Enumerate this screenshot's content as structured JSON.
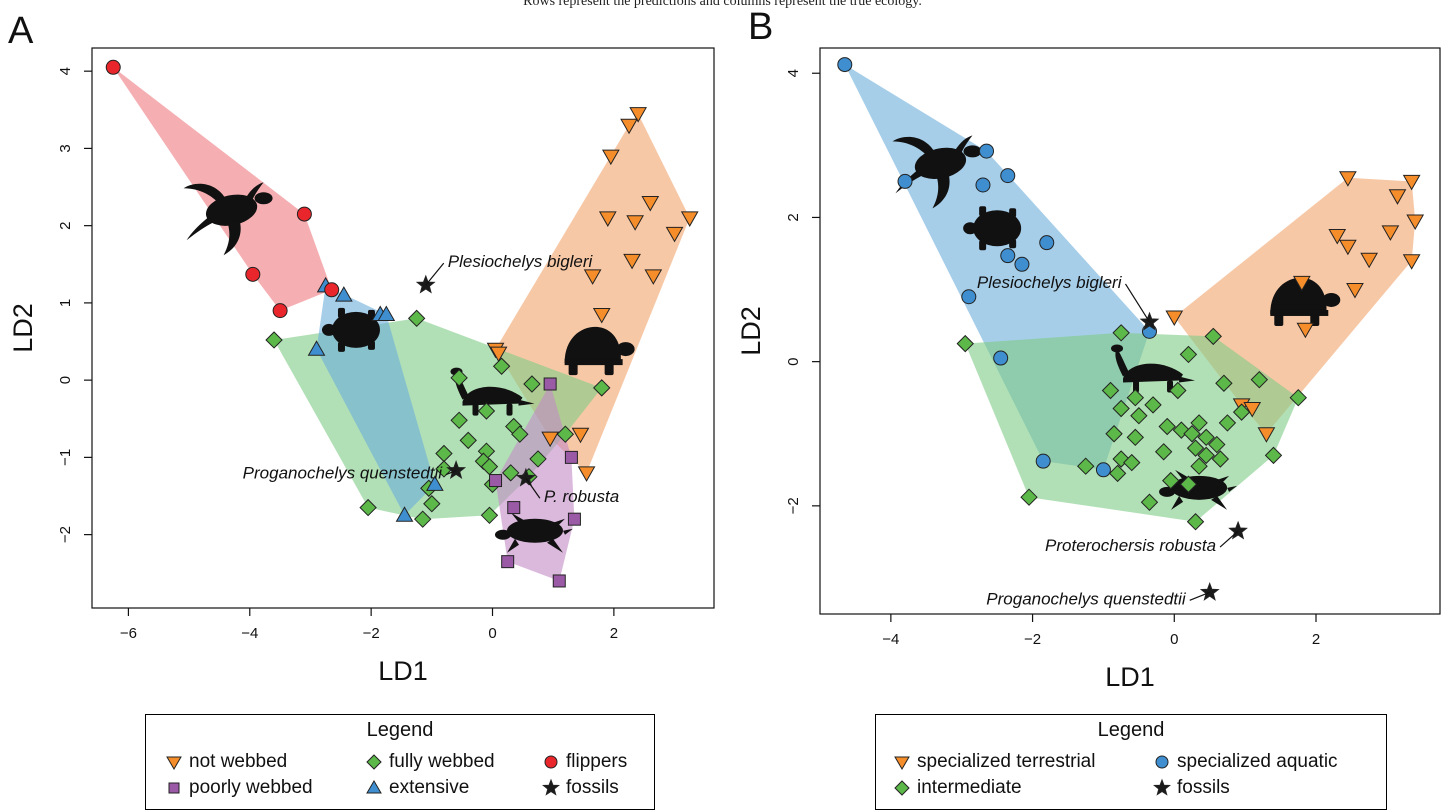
{
  "caption": "Rows represent the predictions and columns represent the true ecology.",
  "colors": {
    "orange": "#f58d2a",
    "green": "#5cb848",
    "purple": "#9b5aa6",
    "blue": "#3f8fd0",
    "red": "#e8262b",
    "black": "#1a1a1a",
    "hull_orange": "#f2a36b",
    "hull_green": "#7fcc85",
    "hull_purple": "#c38bc6",
    "hull_blue": "#6aaedb",
    "hull_red": "#ee7a80"
  },
  "chart_data": [
    {
      "panel": "A",
      "type": "scatter",
      "xlabel": "LD1",
      "ylabel": "LD2",
      "xlim": [
        -6.6,
        3.65
      ],
      "ylim": [
        -2.95,
        4.3
      ],
      "xticks": [
        -6,
        -4,
        -2,
        0,
        2
      ],
      "yticks": [
        -2,
        -1,
        0,
        1,
        2,
        3,
        4
      ],
      "grid": false,
      "series": [
        {
          "name": "not webbed",
          "marker": "triangle-down",
          "color": "orange",
          "hull": true,
          "points": [
            [
              2.4,
              3.45
            ],
            [
              2.25,
              3.3
            ],
            [
              1.95,
              2.9
            ],
            [
              2.6,
              2.3
            ],
            [
              3.25,
              2.1
            ],
            [
              1.9,
              2.1
            ],
            [
              2.35,
              2.05
            ],
            [
              3.0,
              1.9
            ],
            [
              2.3,
              1.55
            ],
            [
              1.65,
              1.35
            ],
            [
              2.65,
              1.35
            ],
            [
              1.8,
              0.85
            ],
            [
              0.05,
              0.4
            ],
            [
              0.1,
              0.35
            ],
            [
              0.95,
              -0.75
            ],
            [
              1.45,
              -0.7
            ],
            [
              1.55,
              -1.2
            ]
          ]
        },
        {
          "name": "fully webbed",
          "marker": "diamond",
          "color": "green",
          "hull": true,
          "points": [
            [
              -3.6,
              0.52
            ],
            [
              -1.25,
              0.8
            ],
            [
              -0.55,
              0.03
            ],
            [
              0.15,
              0.18
            ],
            [
              0.65,
              -0.05
            ],
            [
              1.8,
              -0.1
            ],
            [
              -0.1,
              -0.4
            ],
            [
              -0.55,
              -0.52
            ],
            [
              0.35,
              -0.6
            ],
            [
              0.45,
              -0.7
            ],
            [
              -0.4,
              -0.78
            ],
            [
              -0.1,
              -0.92
            ],
            [
              -0.8,
              -0.95
            ],
            [
              -0.15,
              -1.05
            ],
            [
              -0.05,
              -1.12
            ],
            [
              0.75,
              -1.02
            ],
            [
              1.2,
              -0.7
            ],
            [
              0.6,
              -1.25
            ],
            [
              0.3,
              -1.2
            ],
            [
              0.0,
              -1.35
            ],
            [
              -1.05,
              -1.4
            ],
            [
              -1.0,
              -1.6
            ],
            [
              -1.15,
              -1.8
            ],
            [
              -2.05,
              -1.65
            ],
            [
              -0.05,
              -1.75
            ],
            [
              -0.8,
              -1.15
            ]
          ]
        },
        {
          "name": "poorly webbed",
          "marker": "square",
          "color": "purple",
          "hull": true,
          "points": [
            [
              0.95,
              -0.05
            ],
            [
              1.3,
              -1.0
            ],
            [
              0.05,
              -1.3
            ],
            [
              0.35,
              -1.65
            ],
            [
              1.35,
              -1.8
            ],
            [
              0.25,
              -2.35
            ],
            [
              1.1,
              -2.6
            ]
          ]
        },
        {
          "name": "extensive",
          "marker": "triangle-up",
          "color": "blue",
          "hull": true,
          "points": [
            [
              -2.75,
              1.22
            ],
            [
              -2.45,
              1.1
            ],
            [
              -1.85,
              0.85
            ],
            [
              -1.75,
              0.85
            ],
            [
              -2.9,
              0.4
            ],
            [
              -0.95,
              -1.35
            ],
            [
              -1.45,
              -1.75
            ]
          ]
        },
        {
          "name": "flippers",
          "marker": "circle",
          "color": "red",
          "hull": true,
          "points": [
            [
              -6.25,
              4.05
            ],
            [
              -3.1,
              2.15
            ],
            [
              -3.95,
              1.37
            ],
            [
              -2.65,
              1.17
            ],
            [
              -3.5,
              0.9
            ]
          ]
        },
        {
          "name": "fossils",
          "marker": "star",
          "color": "black",
          "hull": false,
          "points": [
            [
              -1.1,
              1.23
            ],
            [
              -0.6,
              -1.17
            ],
            [
              0.55,
              -1.27
            ]
          ]
        }
      ],
      "annotations": [
        {
          "text": "Plesiochelys bigleri",
          "x": -1.1,
          "y": 1.23
        },
        {
          "text": "Proganochelys quenstedtii",
          "x": -0.6,
          "y": -1.17
        },
        {
          "text": "P. robusta",
          "x": 0.55,
          "y": -1.27
        }
      ],
      "silhouettes": [
        {
          "icon": "sea-turtle-icon",
          "x": -4.3,
          "y": 2.2
        },
        {
          "icon": "pond-turtle-icon",
          "x": -2.25,
          "y": 0.65
        },
        {
          "icon": "box-turtle-icon",
          "x": 1.65,
          "y": 0.35
        },
        {
          "icon": "slider-turtle-icon",
          "x": 0.0,
          "y": -0.2
        },
        {
          "icon": "softshell-turtle-icon",
          "x": 0.7,
          "y": -1.95
        }
      ],
      "legend": {
        "title": "Legend",
        "items": [
          "not webbed",
          "fully webbed",
          "flippers",
          "poorly webbed",
          "extensive",
          "fossils"
        ]
      }
    },
    {
      "panel": "B",
      "type": "scatter",
      "xlabel": "LD1",
      "ylabel": "LD2",
      "xlim": [
        -5.0,
        3.75
      ],
      "ylim": [
        -3.5,
        4.35
      ],
      "xticks": [
        -4,
        -2,
        0,
        2
      ],
      "yticks": [
        -2,
        0,
        2,
        4
      ],
      "grid": false,
      "series": [
        {
          "name": "specialized terrestrial",
          "marker": "triangle-down",
          "color": "orange",
          "hull": true,
          "points": [
            [
              2.45,
              2.55
            ],
            [
              3.35,
              2.5
            ],
            [
              3.15,
              2.3
            ],
            [
              3.4,
              1.95
            ],
            [
              3.05,
              1.8
            ],
            [
              2.3,
              1.75
            ],
            [
              2.45,
              1.6
            ],
            [
              2.75,
              1.42
            ],
            [
              3.35,
              1.4
            ],
            [
              1.8,
              1.1
            ],
            [
              2.55,
              1.0
            ],
            [
              1.85,
              0.45
            ],
            [
              0.0,
              0.62
            ],
            [
              0.95,
              -0.6
            ],
            [
              1.3,
              -1.0
            ],
            [
              1.1,
              -0.65
            ]
          ]
        },
        {
          "name": "specialized aquatic",
          "marker": "circle",
          "color": "blue",
          "hull": true,
          "points": [
            [
              -4.65,
              4.12
            ],
            [
              -2.65,
              2.92
            ],
            [
              -3.8,
              2.5
            ],
            [
              -2.7,
              2.45
            ],
            [
              -2.35,
              2.58
            ],
            [
              -1.8,
              1.65
            ],
            [
              -2.35,
              1.47
            ],
            [
              -2.15,
              1.35
            ],
            [
              -2.9,
              0.9
            ],
            [
              -0.35,
              0.42
            ],
            [
              -2.45,
              0.05
            ],
            [
              -1.85,
              -1.38
            ],
            [
              -1.0,
              -1.5
            ]
          ]
        },
        {
          "name": "intermediate",
          "marker": "diamond",
          "color": "green",
          "hull": true,
          "points": [
            [
              -2.95,
              0.25
            ],
            [
              -0.75,
              0.4
            ],
            [
              0.55,
              0.35
            ],
            [
              0.2,
              0.1
            ],
            [
              0.05,
              -0.4
            ],
            [
              1.2,
              -0.25
            ],
            [
              1.75,
              -0.5
            ],
            [
              0.7,
              -0.3
            ],
            [
              -0.9,
              -0.4
            ],
            [
              -0.55,
              -0.5
            ],
            [
              -0.3,
              -0.6
            ],
            [
              -0.75,
              -0.65
            ],
            [
              -0.5,
              -0.75
            ],
            [
              0.35,
              -0.85
            ],
            [
              0.95,
              -0.7
            ],
            [
              0.75,
              -0.85
            ],
            [
              -0.1,
              -0.9
            ],
            [
              0.1,
              -0.95
            ],
            [
              0.25,
              -1.0
            ],
            [
              -0.55,
              -1.05
            ],
            [
              -0.85,
              -1.0
            ],
            [
              0.45,
              -1.05
            ],
            [
              0.6,
              -1.15
            ],
            [
              0.3,
              -1.2
            ],
            [
              -0.15,
              -1.25
            ],
            [
              0.45,
              -1.3
            ],
            [
              0.65,
              -1.35
            ],
            [
              -0.75,
              -1.35
            ],
            [
              -0.6,
              -1.4
            ],
            [
              -1.25,
              -1.45
            ],
            [
              0.35,
              -1.45
            ],
            [
              -0.8,
              -1.55
            ],
            [
              1.4,
              -1.3
            ],
            [
              -0.05,
              -1.65
            ],
            [
              0.2,
              -1.7
            ],
            [
              -0.35,
              -1.95
            ],
            [
              -2.05,
              -1.88
            ],
            [
              0.3,
              -2.22
            ]
          ]
        },
        {
          "name": "fossils",
          "marker": "star",
          "color": "black",
          "hull": false,
          "points": [
            [
              -0.35,
              0.55
            ],
            [
              0.9,
              -2.35
            ],
            [
              0.5,
              -3.2
            ]
          ]
        }
      ],
      "annotations": [
        {
          "text": "Plesiochelys bigleri",
          "x": -0.35,
          "y": 0.55
        },
        {
          "text": "Proterochersis robusta",
          "x": 0.9,
          "y": -2.35
        },
        {
          "text": "Proganochelys quenstedtii",
          "x": 0.5,
          "y": -3.2
        }
      ],
      "silhouettes": [
        {
          "icon": "sea-turtle-icon",
          "x": -3.3,
          "y": 2.75
        },
        {
          "icon": "pond-turtle-icon",
          "x": -2.5,
          "y": 1.85
        },
        {
          "icon": "box-turtle-icon",
          "x": 1.75,
          "y": 0.8
        },
        {
          "icon": "slider-turtle-icon",
          "x": -0.3,
          "y": -0.15
        },
        {
          "icon": "softshell-turtle-icon",
          "x": 0.35,
          "y": -1.75
        }
      ],
      "legend": {
        "title": "Legend",
        "items": [
          "specialized terrestrial",
          "specialized aquatic",
          "intermediate",
          "fossils"
        ]
      }
    }
  ]
}
